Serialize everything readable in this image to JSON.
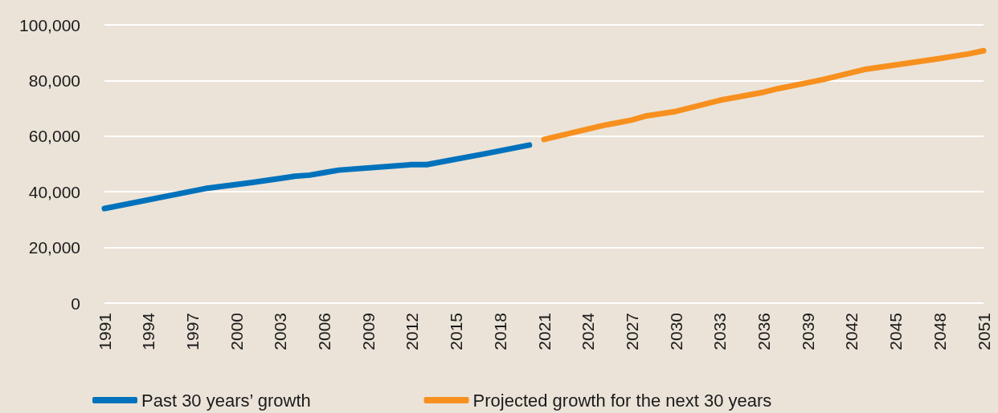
{
  "chart_data": {
    "type": "line",
    "series": [
      {
        "name": "Past 30 years’ growth",
        "color": "#0072bc",
        "x": [
          1991,
          1998,
          2001,
          2003,
          2004,
          2005,
          2006,
          2007,
          2012,
          2013,
          2017,
          2020
        ],
        "values": [
          34000,
          41300,
          43300,
          44800,
          45600,
          46000,
          46900,
          47800,
          49800,
          49800,
          53700,
          56800
        ]
      },
      {
        "name": "Projected growth for the next 30 years",
        "color": "#f7901e",
        "x": [
          2021,
          2025,
          2027,
          2028,
          2030,
          2033,
          2036,
          2037,
          2040,
          2043,
          2048,
          2050,
          2051
        ],
        "values": [
          58800,
          63800,
          65800,
          67300,
          68900,
          72900,
          75800,
          77100,
          80300,
          84100,
          87900,
          89600,
          90700
        ]
      }
    ],
    "xlim": [
      1991,
      2051
    ],
    "xticks": [
      1991,
      1994,
      1997,
      2000,
      2003,
      2006,
      2009,
      2012,
      2015,
      2018,
      2021,
      2024,
      2027,
      2030,
      2033,
      2036,
      2039,
      2042,
      2045,
      2048,
      2051
    ],
    "ylim": [
      0,
      100000
    ],
    "yticks": [
      0,
      {
        "value": 20000,
        "label": "20,000"
      },
      {
        "value": 40000,
        "label": "40,000"
      },
      {
        "value": 60000,
        "label": "60,000"
      },
      {
        "value": 80000,
        "label": "80,000"
      },
      {
        "value": 100000,
        "label": "100,000"
      }
    ],
    "grid": "y",
    "legend": "bottom",
    "marker": "none",
    "line_style": "solid"
  }
}
